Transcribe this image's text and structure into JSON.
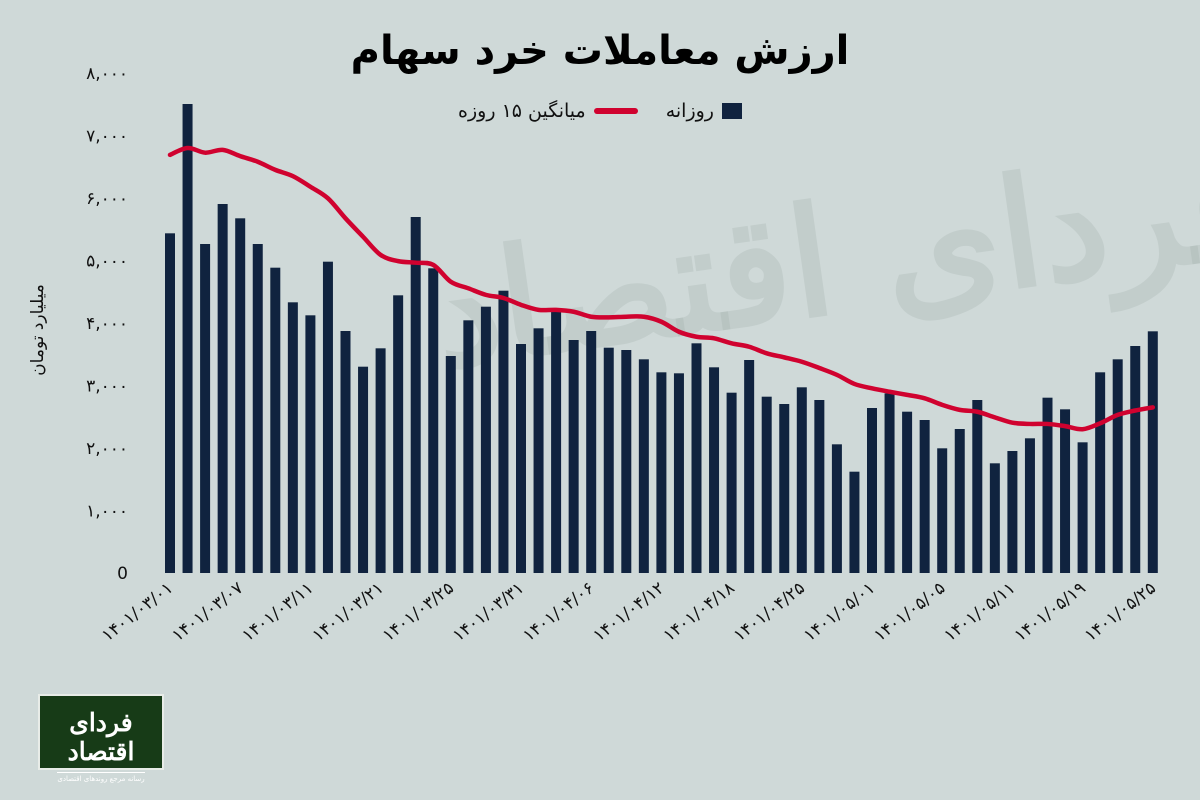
{
  "chart_data": {
    "type": "bar",
    "title": "ارزش معاملات خرد سهام",
    "ylabel": "میلیارد تومان",
    "xlabel": "",
    "ylim": [
      0,
      8000
    ],
    "yticks": [
      "0",
      "۱,۰۰۰",
      "۲,۰۰۰",
      "۳,۰۰۰",
      "۴,۰۰۰",
      "۵,۰۰۰",
      "۶,۰۰۰",
      "۷,۰۰۰",
      "۸,۰۰۰"
    ],
    "ytick_values": [
      0,
      1000,
      2000,
      3000,
      4000,
      5000,
      6000,
      7000,
      8000
    ],
    "xtick_labels": [
      "۱۴۰۱/۰۳/۰۱",
      "۱۴۰۱/۰۳/۰۷",
      "۱۴۰۱/۰۳/۱۱",
      "۱۴۰۱/۰۳/۲۱",
      "۱۴۰۱/۰۳/۲۵",
      "۱۴۰۱/۰۳/۳۱",
      "۱۴۰۱/۰۴/۰۶",
      "۱۴۰۱/۰۴/۱۲",
      "۱۴۰۱/۰۴/۱۸",
      "۱۴۰۱/۰۴/۲۵",
      "۱۴۰۱/۰۵/۰۱",
      "۱۴۰۱/۰۵/۰۵",
      "۱۴۰۱/۰۵/۱۱",
      "۱۴۰۱/۰۵/۱۹",
      "۱۴۰۱/۰۵/۲۵"
    ],
    "xtick_every": 4,
    "grid": false,
    "legend_placement": "top-center",
    "series": [
      {
        "name": "روزانه",
        "type": "bar",
        "color": "#10233f",
        "values": [
          5435,
          7504,
          5264,
          5904,
          5675,
          5264,
          4885,
          4331,
          4123,
          4981,
          3872,
          3301,
          3595,
          4443,
          5696,
          4875,
          3472,
          4043,
          4261,
          4517,
          3664,
          3915,
          4181,
          3728,
          3872,
          3605,
          3568,
          3419,
          3211,
          3195,
          3675,
          3291,
          2885,
          3408,
          2821,
          2704,
          2971,
          2768,
          2059,
          1621,
          2640,
          2875,
          2581,
          2448,
          1995,
          2304,
          2768,
          1755,
          1952,
          2155,
          2805,
          2619,
          2091,
          3211,
          3419,
          3632,
          3867
        ]
      },
      {
        "name": "میانگین ۱۵ روزه",
        "type": "line",
        "color": "#d0022f",
        "values": [
          6690,
          6800,
          6725,
          6770,
          6670,
          6580,
          6450,
          6350,
          6180,
          5995,
          5675,
          5380,
          5090,
          4990,
          4965,
          4930,
          4660,
          4555,
          4450,
          4400,
          4290,
          4210,
          4210,
          4180,
          4100,
          4090,
          4100,
          4100,
          4020,
          3860,
          3780,
          3755,
          3675,
          3620,
          3515,
          3450,
          3380,
          3280,
          3170,
          3025,
          2955,
          2900,
          2850,
          2795,
          2690,
          2610,
          2580,
          2490,
          2405,
          2385,
          2385,
          2350,
          2300,
          2395,
          2530,
          2600,
          2650
        ]
      }
    ]
  },
  "logo": {
    "name": "فردای اقتصاد",
    "tagline": "رسانه مرجع روندهای اقتصادی"
  },
  "watermark": "فردای اقتصاد"
}
